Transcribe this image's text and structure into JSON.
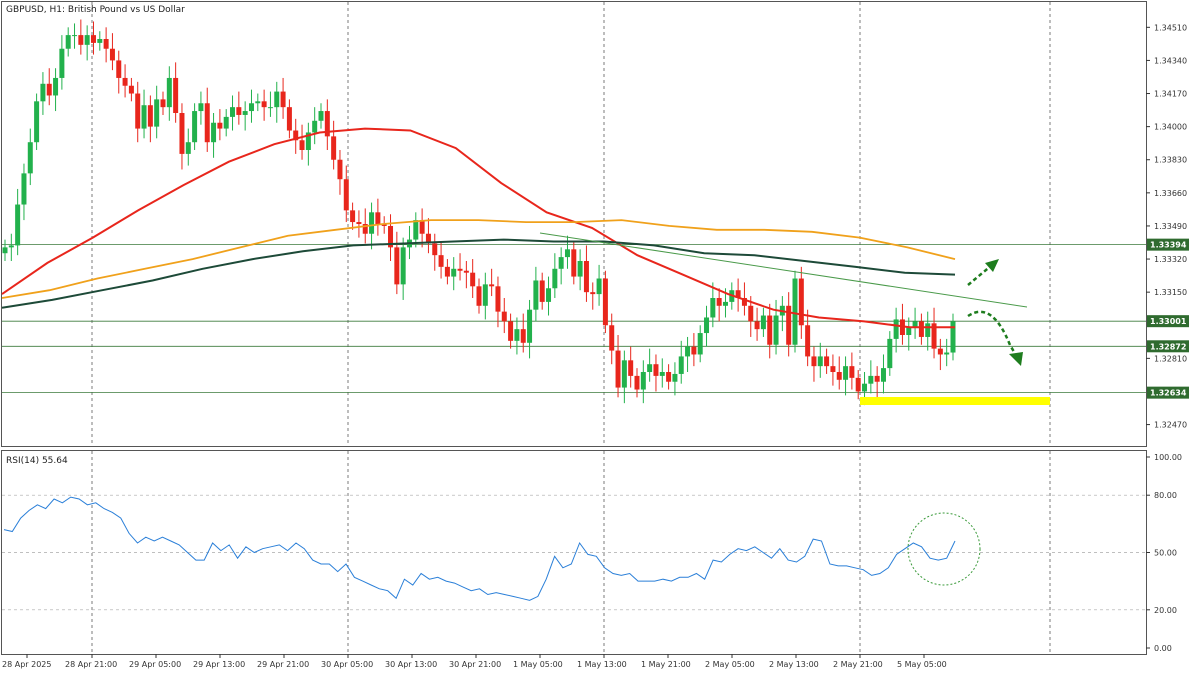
{
  "chart_data": [
    {
      "type": "candlestick",
      "title": "GBPUSD, H1:  British Pound vs US Dollar",
      "y_ticks": [
        "1.34510",
        "1.34340",
        "1.34170",
        "1.34000",
        "1.33830",
        "1.33660",
        "1.33490",
        "1.33320",
        "1.33150",
        "1.32810",
        "1.32470"
      ],
      "ylim": [
        1.3236,
        1.3464
      ],
      "x_tick_labels": [
        "28 Apr 2025",
        "28 Apr 21:00",
        "29 Apr 05:00",
        "29 Apr 13:00",
        "29 Apr 21:00",
        "30 Apr 05:00",
        "30 Apr 13:00",
        "30 Apr 21:00",
        "1 May 05:00",
        "1 May 13:00",
        "1 May 21:00",
        "2 May 05:00",
        "2 May 13:00",
        "2 May 21:00",
        "5 May 05:00"
      ],
      "levels": [
        {
          "value": 1.33394,
          "label": "1.33394"
        },
        {
          "value": 1.33001,
          "label": "1.33001"
        },
        {
          "value": 1.32872,
          "label": "1.32872"
        },
        {
          "value": 1.32634,
          "label": "1.32634"
        }
      ],
      "closes": [
        1.3338,
        1.3339,
        1.336,
        1.3376,
        1.3392,
        1.3413,
        1.3422,
        1.3416,
        1.3425,
        1.344,
        1.3447,
        1.3447,
        1.3442,
        1.3447,
        1.3443,
        1.3445,
        1.344,
        1.3434,
        1.3425,
        1.3421,
        1.3417,
        1.3399,
        1.3411,
        1.34,
        1.3414,
        1.341,
        1.3425,
        1.3407,
        1.3386,
        1.3392,
        1.3408,
        1.3412,
        1.3392,
        1.3402,
        1.3399,
        1.3405,
        1.341,
        1.3406,
        1.3408,
        1.3412,
        1.3413,
        1.341,
        1.341,
        1.3418,
        1.341,
        1.3398,
        1.3393,
        1.3388,
        1.3397,
        1.3403,
        1.3408,
        1.3395,
        1.3383,
        1.3373,
        1.3357,
        1.3351,
        1.335,
        1.3345,
        1.3356,
        1.335,
        1.3349,
        1.3338,
        1.3319,
        1.3338,
        1.3342,
        1.3352,
        1.3345,
        1.334,
        1.3334,
        1.3328,
        1.3323,
        1.3327,
        1.3326,
        1.3325,
        1.3318,
        1.3308,
        1.3319,
        1.3318,
        1.3305,
        1.33,
        1.329,
        1.3296,
        1.3289,
        1.3306,
        1.3321,
        1.331,
        1.3317,
        1.3327,
        1.3333,
        1.3337,
        1.3323,
        1.3331,
        1.3315,
        1.3314,
        1.3322,
        1.3298,
        1.3285,
        1.3266,
        1.328,
        1.3272,
        1.3265,
        1.3274,
        1.3278,
        1.3272,
        1.3274,
        1.3269,
        1.3273,
        1.3282,
        1.3287,
        1.3283,
        1.3294,
        1.3302,
        1.3312,
        1.3308,
        1.331,
        1.3316,
        1.3312,
        1.3308,
        1.33,
        1.3296,
        1.3303,
        1.3288,
        1.3303,
        1.3308,
        1.3288,
        1.3322,
        1.3298,
        1.3282,
        1.3277,
        1.3282,
        1.3277,
        1.3274,
        1.327,
        1.3277,
        1.3271,
        1.3264,
        1.3268,
        1.3272,
        1.3269,
        1.3276,
        1.3291,
        1.3301,
        1.3293,
        1.3297,
        1.33,
        1.3292,
        1.3299,
        1.3286,
        1.3283,
        1.3284,
        1.33
      ],
      "series": [
        {
          "name": "",
          "color": "#e8261c",
          "values": [
            1.3314,
            1.333,
            1.3343,
            1.3357,
            1.337,
            1.3382,
            1.3391,
            1.3397,
            1.3399,
            1.3398,
            1.3389,
            1.3371,
            1.3356,
            1.3348,
            1.3334,
            1.3324,
            1.3314,
            1.3306,
            1.3302,
            1.33,
            1.3297,
            1.3297
          ]
        },
        {
          "name": "",
          "color": "#f0a11b",
          "values": [
            1.3312,
            1.3316,
            1.3322,
            1.3327,
            1.3332,
            1.3338,
            1.3344,
            1.3347,
            1.335,
            1.3352,
            1.3352,
            1.3351,
            1.3351,
            1.3352,
            1.3349,
            1.3347,
            1.3347,
            1.3346,
            1.3343,
            1.3338,
            1.3332
          ]
        },
        {
          "name": "",
          "color": "#1d4a38",
          "values": [
            1.3307,
            1.3311,
            1.3316,
            1.3321,
            1.3327,
            1.3332,
            1.3336,
            1.3339,
            1.334,
            1.3341,
            1.3342,
            1.3341,
            1.3341,
            1.3339,
            1.3335,
            1.3334,
            1.3331,
            1.3328,
            1.3325,
            1.3324
          ]
        }
      ]
    },
    {
      "type": "line",
      "title": "RSI(14) 55.64",
      "y_ticks": [
        "100.00",
        "80.00",
        "50.00",
        "20.00",
        "0.00"
      ],
      "ylim": [
        0,
        100
      ],
      "series": [
        {
          "name": "RSI(14)",
          "color": "#2a7fd8",
          "values": [
            62,
            61,
            68,
            72,
            75,
            73,
            78,
            76,
            79,
            78,
            75,
            76,
            73,
            71,
            68,
            60,
            55,
            58,
            56,
            58,
            56,
            54,
            50,
            46,
            46,
            55,
            51,
            54,
            47,
            53,
            50,
            52,
            53,
            54,
            51,
            55,
            52,
            46,
            44,
            44,
            40,
            44,
            37,
            35,
            33,
            31,
            30,
            26,
            36,
            33,
            39,
            36,
            37,
            35,
            34,
            32,
            30,
            31,
            28,
            29,
            28,
            27,
            26,
            25,
            27,
            36,
            48,
            42,
            44,
            55,
            49,
            48,
            42,
            39,
            38,
            39,
            35,
            35,
            35,
            36,
            35,
            37,
            37,
            39,
            36,
            46,
            45,
            49,
            52,
            51,
            53,
            50,
            47,
            52,
            46,
            45,
            48,
            57,
            56,
            44,
            43,
            43,
            42,
            41,
            38,
            39,
            42,
            49,
            52,
            55,
            53,
            47,
            46,
            47,
            56
          ]
        }
      ]
    }
  ]
}
